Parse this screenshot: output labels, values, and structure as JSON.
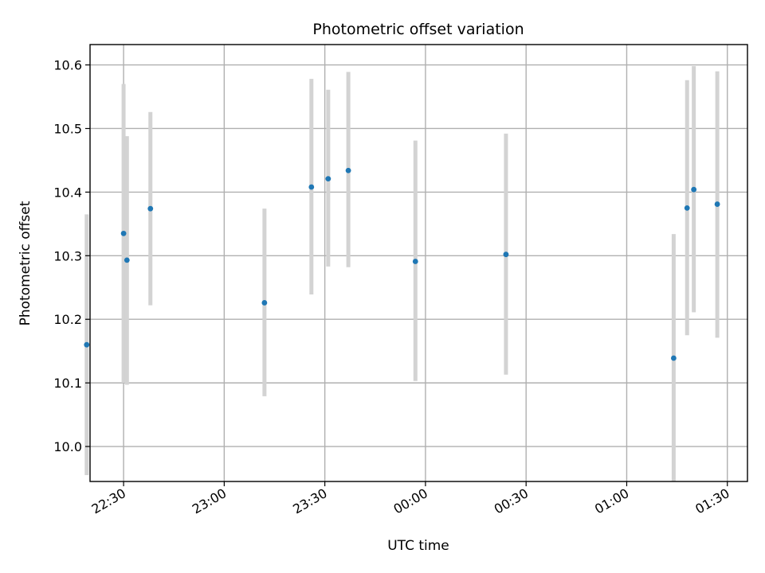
{
  "chart_data": {
    "type": "scatter",
    "title": "Photometric offset variation",
    "xlabel": "UTC time",
    "ylabel": "Photometric offset",
    "x_axis": "time",
    "xlim": [
      "22:20",
      "01:36"
    ],
    "ylim": [
      9.945,
      10.632
    ],
    "x_ticks": [
      "22:30",
      "23:00",
      "23:30",
      "00:00",
      "00:30",
      "01:00",
      "01:30"
    ],
    "y_ticks": [
      "10.0",
      "10.1",
      "10.2",
      "10.3",
      "10.4",
      "10.5",
      "10.6"
    ],
    "grid": true,
    "colors": {
      "points": "#1f77b4",
      "errorbars": "#d3d3d3"
    },
    "series": [
      {
        "points": [
          {
            "x": "22:19",
            "y": 10.16,
            "ylow": 9.955,
            "yhigh": 10.365
          },
          {
            "x": "22:30",
            "y": 10.335,
            "ylow": 10.1,
            "yhigh": 10.57
          },
          {
            "x": "22:31",
            "y": 10.293,
            "ylow": 10.097,
            "yhigh": 10.488
          },
          {
            "x": "22:38",
            "y": 10.374,
            "ylow": 10.222,
            "yhigh": 10.526
          },
          {
            "x": "23:12",
            "y": 10.226,
            "ylow": 10.079,
            "yhigh": 10.374
          },
          {
            "x": "23:26",
            "y": 10.408,
            "ylow": 10.239,
            "yhigh": 10.578
          },
          {
            "x": "23:31",
            "y": 10.421,
            "ylow": 10.283,
            "yhigh": 10.561
          },
          {
            "x": "23:37",
            "y": 10.434,
            "ylow": 10.282,
            "yhigh": 10.589
          },
          {
            "x": "23:57",
            "y": 10.291,
            "ylow": 10.103,
            "yhigh": 10.481
          },
          {
            "x": "00:24",
            "y": 10.302,
            "ylow": 10.113,
            "yhigh": 10.492
          },
          {
            "x": "01:14",
            "y": 10.139,
            "ylow": 9.945,
            "yhigh": 10.334
          },
          {
            "x": "01:18",
            "y": 10.375,
            "ylow": 10.175,
            "yhigh": 10.576
          },
          {
            "x": "01:20",
            "y": 10.404,
            "ylow": 10.211,
            "yhigh": 10.598
          },
          {
            "x": "01:27",
            "y": 10.381,
            "ylow": 10.171,
            "yhigh": 10.59
          }
        ]
      }
    ]
  }
}
